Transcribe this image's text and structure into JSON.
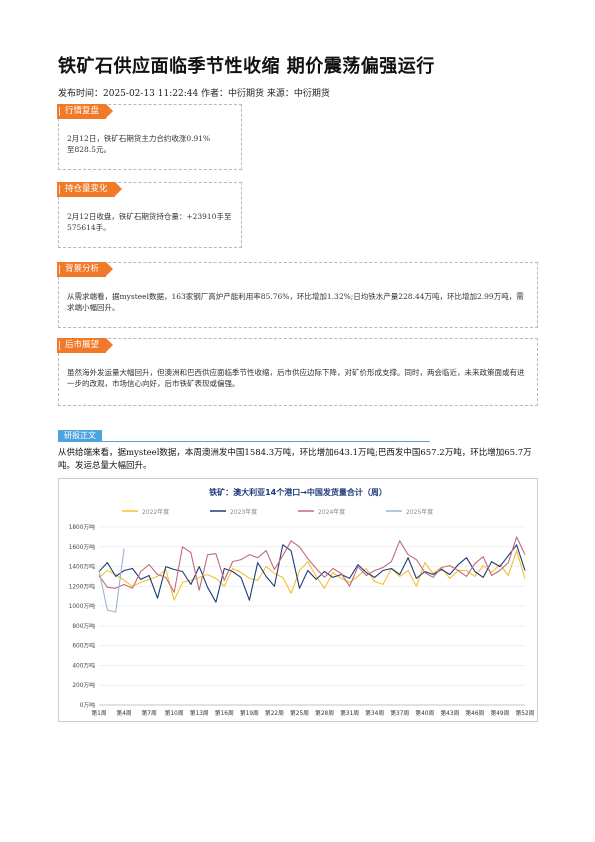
{
  "article": {
    "title": "铁矿石供应面临季节性收缩 期价震荡偏强运行",
    "meta": "发布时间：2025-02-13 11:22:44 作者：中衍期货 来源：中衍期货"
  },
  "sections": [
    {
      "tag": "行情复盘",
      "text": "2月12日，铁矿石期货主力合约收涨0.91%至828.5元。"
    },
    {
      "tag": "持仓量变化",
      "text": "2月12日收盘，铁矿石期货持仓量：+23910手至575614手。"
    },
    {
      "tag": "背景分析",
      "text": "从需求端看，据mysteel数据，163家钢厂高炉产能利用率85.76%，环比增加1.32%;日均铁水产量228.44万吨，环比增加2.99万吨，需求端小幅回升。"
    },
    {
      "tag": "后市展望",
      "text": "虽然海外发运量大幅回升，但澳洲和巴西供应面临季节性收缩，后市供应边际下降，对矿价形成支撑。同时，两会临近，未来政策面或有进一步的改观，市场信心向好，后市铁矿表现或偏强。"
    }
  ],
  "research": {
    "tag": "研报正文",
    "text": "从供给端来看，据mysteel数据，本周澳洲发中国1584.3万吨，环比增加643.1万吨;巴西发中国657.2万吨，环比增加65.7万吨。发运总量大幅回升。"
  },
  "chart_data": {
    "type": "line",
    "title": "铁矿：澳大利亚14个港口→中国发货量合计（周）",
    "ylim": [
      0,
      1800
    ],
    "yticks": [
      "0万吨",
      "200万吨",
      "400万吨",
      "600万吨",
      "800万吨",
      "1000万吨",
      "1200万吨",
      "1400万吨",
      "1600万吨",
      "1800万吨"
    ],
    "xticks": [
      "第1周",
      "第4周",
      "第7周",
      "第10周",
      "第13周",
      "第16周",
      "第19周",
      "第22周",
      "第25周",
      "第28周",
      "第31周",
      "第34周",
      "第37周",
      "第40周",
      "第43周",
      "第46周",
      "第49周",
      "第52周"
    ],
    "legend_position": "top",
    "series": [
      {
        "name": "2022年度",
        "color": "#f2c12e",
        "values": [
          1290,
          1360,
          1320,
          1260,
          1200,
          1240,
          1270,
          1300,
          1370,
          1060,
          1240,
          1260,
          1290,
          1320,
          1280,
          1200,
          1380,
          1340,
          1280,
          1260,
          1400,
          1330,
          1290,
          1130,
          1360,
          1450,
          1300,
          1180,
          1340,
          1280,
          1240,
          1300,
          1380,
          1250,
          1220,
          1380,
          1300,
          1360,
          1200,
          1440,
          1330,
          1390,
          1280,
          1360,
          1360,
          1300,
          1410,
          1340,
          1420,
          1310,
          1560,
          1280
        ]
      },
      {
        "name": "2023年度",
        "color": "#1f3a7a",
        "values": [
          1350,
          1440,
          1300,
          1360,
          1380,
          1270,
          1310,
          1080,
          1400,
          1370,
          1350,
          1220,
          1400,
          1190,
          1040,
          1380,
          1350,
          1290,
          1060,
          1440,
          1300,
          1200,
          1620,
          1560,
          1180,
          1360,
          1270,
          1350,
          1290,
          1320,
          1280,
          1420,
          1340,
          1290,
          1360,
          1380,
          1320,
          1490,
          1280,
          1350,
          1320,
          1370,
          1320,
          1420,
          1490,
          1350,
          1290,
          1450,
          1400,
          1510,
          1620,
          1360
        ]
      },
      {
        "name": "2024年度",
        "color": "#c06b7e",
        "values": [
          1310,
          1190,
          1180,
          1220,
          1180,
          1350,
          1420,
          1320,
          1290,
          1140,
          1600,
          1540,
          1160,
          1520,
          1530,
          1260,
          1450,
          1470,
          1520,
          1490,
          1560,
          1370,
          1510,
          1660,
          1600,
          1480,
          1380,
          1290,
          1380,
          1330,
          1200,
          1400,
          1310,
          1360,
          1390,
          1450,
          1660,
          1520,
          1470,
          1340,
          1290,
          1390,
          1410,
          1360,
          1300,
          1430,
          1500,
          1310,
          1360,
          1440,
          1700,
          1520
        ]
      },
      {
        "name": "2025年度",
        "color": "#9bb4d4",
        "values": [
          1360,
          960,
          940,
          1584
        ]
      }
    ]
  }
}
